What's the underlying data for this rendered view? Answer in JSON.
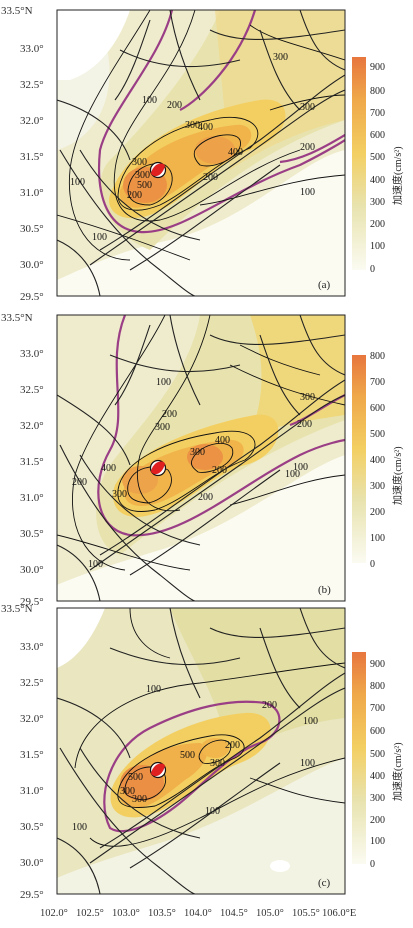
{
  "lat_ticks": [
    "33.5°N",
    "33.0°",
    "32.5°",
    "32.0°",
    "31.5°",
    "31.0°",
    "30.5°",
    "30.0°",
    "29.5°"
  ],
  "lon_ticks": [
    "102.0°",
    "102.5°",
    "103.0°",
    "103.5°",
    "104.0°",
    "104.5°",
    "105.0°",
    "105.5°",
    "106.0°E"
  ],
  "colorbar_title": "加速度(cm/s²)",
  "colors": {
    "low": "#fbfbf2",
    "mid": "#e7e2a4",
    "high": "#f6c43a",
    "peak": "#e7763e",
    "pga200": "#9a3e86",
    "contour": "#111111"
  },
  "panels": [
    {
      "id": "a",
      "label": "(a)",
      "cb_ticks": [
        "900",
        "800",
        "700",
        "600",
        "500",
        "400",
        "300",
        "200",
        "100",
        "0"
      ],
      "contour_labels": [
        "100",
        "200",
        "300",
        "300",
        "300",
        "200",
        "200",
        "100",
        "100",
        "400",
        "400",
        "300",
        "200",
        "300",
        "500",
        "100"
      ]
    },
    {
      "id": "b",
      "label": "(b)",
      "cb_ticks": [
        "800",
        "700",
        "600",
        "500",
        "400",
        "300",
        "200",
        "100",
        "0"
      ],
      "contour_labels": [
        "100",
        "200",
        "300",
        "200",
        "200",
        "100",
        "100",
        "400",
        "300",
        "300",
        "400",
        "200",
        "300",
        "200",
        "100"
      ]
    },
    {
      "id": "c",
      "label": "(c)",
      "cb_ticks": [
        "900",
        "800",
        "700",
        "600",
        "500",
        "400",
        "300",
        "200",
        "100",
        "0"
      ],
      "contour_labels": [
        "100",
        "200",
        "100",
        "100",
        "500",
        "500",
        "300",
        "300",
        "100",
        "300",
        "100",
        "200"
      ]
    }
  ]
}
